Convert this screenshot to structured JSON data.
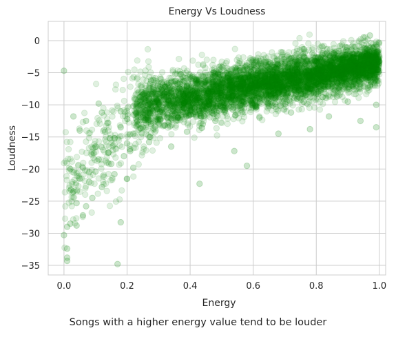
{
  "caption": "Songs with a higher energy value tend to be louder",
  "chart_data": {
    "type": "scatter",
    "title": "Energy Vs Loudness",
    "xlabel": "Energy",
    "ylabel": "Loudness",
    "xlim": [
      -0.05,
      1.02
    ],
    "ylim": [
      -36.5,
      3
    ],
    "xticks": [
      0.0,
      0.2,
      0.4,
      0.6,
      0.8,
      1.0
    ],
    "xtick_labels": [
      "0.0",
      "0.2",
      "0.4",
      "0.6",
      "0.8",
      "1.0"
    ],
    "yticks": [
      0,
      -5,
      -10,
      -15,
      -20,
      -25,
      -30,
      -35
    ],
    "ytick_labels": [
      "0",
      "−5",
      "−10",
      "−15",
      "−20",
      "−25",
      "−30",
      "−35"
    ],
    "grid": true,
    "point_color": "#008000",
    "point_alpha": 0.12,
    "series": [
      {
        "points": [
          [
            0.0,
            -4.7
          ],
          [
            0.0,
            -30.3
          ],
          [
            0.01,
            -34.3
          ],
          [
            0.01,
            -33.8
          ],
          [
            0.01,
            -29.0
          ],
          [
            0.02,
            -28.5
          ],
          [
            0.01,
            -32.4
          ],
          [
            0.02,
            -20.0
          ],
          [
            0.03,
            -23.5
          ],
          [
            0.04,
            -25.3
          ],
          [
            0.05,
            -21.5
          ],
          [
            0.04,
            -28.8
          ],
          [
            0.06,
            -19.8
          ],
          [
            0.07,
            -25.8
          ],
          [
            0.08,
            -22.0
          ],
          [
            0.08,
            -20.5
          ],
          [
            0.06,
            -27.2
          ],
          [
            0.09,
            -24.5
          ],
          [
            0.1,
            -16.5
          ],
          [
            0.1,
            -20.4
          ],
          [
            0.11,
            -18.5
          ],
          [
            0.12,
            -22.8
          ],
          [
            0.13,
            -14.2
          ],
          [
            0.14,
            -17.5
          ],
          [
            0.15,
            -19.2
          ],
          [
            0.16,
            -20.8
          ],
          [
            0.17,
            -34.8
          ],
          [
            0.18,
            -28.3
          ],
          [
            0.16,
            -15.2
          ],
          [
            0.19,
            -18.0
          ],
          [
            0.2,
            -16.0
          ],
          [
            0.2,
            -21.5
          ],
          [
            0.21,
            -17.2
          ],
          [
            0.22,
            -19.8
          ],
          [
            0.22,
            -14.5
          ],
          [
            0.03,
            -11.8
          ],
          [
            0.05,
            -14.0
          ],
          [
            0.07,
            -12.5
          ],
          [
            0.11,
            -9.8
          ],
          [
            0.12,
            -11.2
          ],
          [
            0.14,
            -12.8
          ],
          [
            0.18,
            -11.0
          ],
          [
            0.22,
            -10.2
          ],
          [
            0.24,
            -8.8
          ],
          [
            0.25,
            -13.5
          ],
          [
            0.26,
            -12.2
          ],
          [
            0.27,
            -15.8
          ],
          [
            0.28,
            -9.5
          ],
          [
            0.29,
            -11.8
          ],
          [
            0.3,
            -7.5
          ],
          [
            0.31,
            -10.8
          ],
          [
            0.32,
            -13.2
          ],
          [
            0.33,
            -8.2
          ],
          [
            0.34,
            -16.5
          ],
          [
            0.35,
            -9.8
          ],
          [
            0.36,
            -12.0
          ],
          [
            0.37,
            -5.2
          ],
          [
            0.38,
            -10.5
          ],
          [
            0.39,
            -14.2
          ],
          [
            0.4,
            -8.5
          ],
          [
            0.41,
            -11.5
          ],
          [
            0.42,
            -9.2
          ],
          [
            0.43,
            -22.3
          ],
          [
            0.44,
            -13.0
          ],
          [
            0.45,
            -7.8
          ],
          [
            0.46,
            -10.0
          ],
          [
            0.47,
            -6.5
          ],
          [
            0.48,
            -12.5
          ],
          [
            0.49,
            -9.0
          ],
          [
            0.5,
            -8.2
          ],
          [
            0.51,
            -11.0
          ],
          [
            0.52,
            -5.8
          ],
          [
            0.53,
            -9.5
          ],
          [
            0.54,
            -17.2
          ],
          [
            0.55,
            -7.2
          ],
          [
            0.56,
            -10.5
          ],
          [
            0.57,
            -8.8
          ],
          [
            0.58,
            -19.5
          ],
          [
            0.59,
            -6.8
          ],
          [
            0.6,
            -9.8
          ],
          [
            0.61,
            -7.5
          ],
          [
            0.62,
            -12.0
          ],
          [
            0.63,
            -5.5
          ],
          [
            0.64,
            -8.5
          ],
          [
            0.65,
            -10.2
          ],
          [
            0.66,
            -6.2
          ],
          [
            0.67,
            -9.0
          ],
          [
            0.68,
            -14.5
          ],
          [
            0.69,
            -7.0
          ],
          [
            0.7,
            -5.8
          ],
          [
            0.71,
            -8.2
          ],
          [
            0.72,
            -11.2
          ],
          [
            0.73,
            -6.5
          ],
          [
            0.74,
            -4.8
          ],
          [
            0.75,
            -7.8
          ],
          [
            0.76,
            -9.5
          ],
          [
            0.77,
            -5.5
          ],
          [
            0.78,
            -13.8
          ],
          [
            0.79,
            -6.8
          ],
          [
            0.8,
            -4.5
          ],
          [
            0.81,
            -7.2
          ],
          [
            0.82,
            -8.8
          ],
          [
            0.83,
            -5.2
          ],
          [
            0.84,
            -11.8
          ],
          [
            0.85,
            -6.0
          ],
          [
            0.86,
            -4.2
          ],
          [
            0.87,
            -7.5
          ],
          [
            0.88,
            -3.8
          ],
          [
            0.89,
            -5.8
          ],
          [
            0.9,
            -9.5
          ],
          [
            0.91,
            -4.8
          ],
          [
            0.92,
            -6.5
          ],
          [
            0.93,
            -3.5
          ],
          [
            0.94,
            -12.5
          ],
          [
            0.95,
            -5.0
          ],
          [
            0.96,
            -2.8
          ],
          [
            0.97,
            -7.0
          ],
          [
            0.98,
            -1.2
          ],
          [
            0.99,
            -4.0
          ],
          [
            1.0,
            -2.5
          ],
          [
            0.97,
            0.8
          ],
          [
            0.95,
            0.5
          ],
          [
            0.99,
            -10.0
          ],
          [
            0.99,
            -13.5
          ]
        ]
      }
    ]
  }
}
